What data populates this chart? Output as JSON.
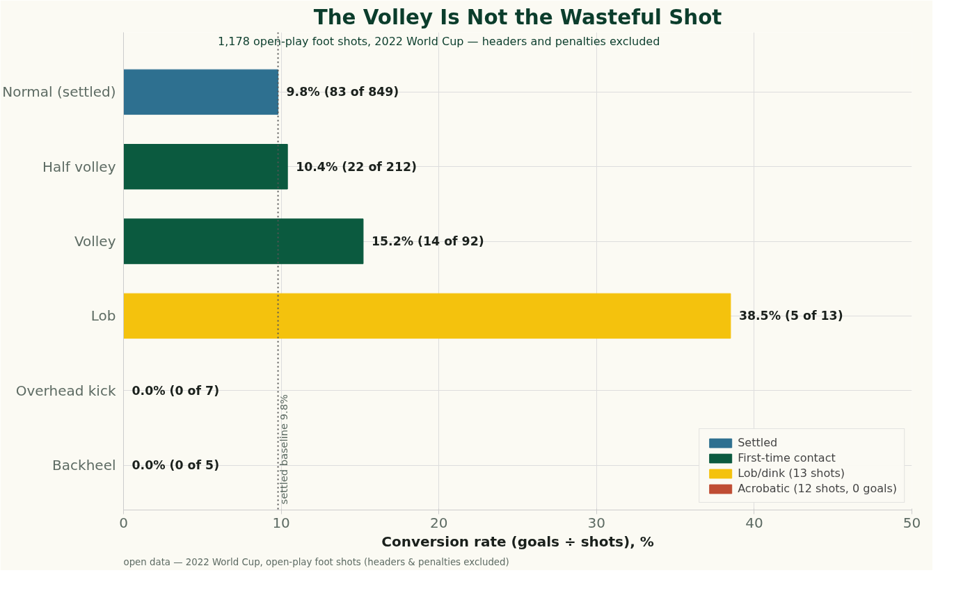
{
  "chart_data": {
    "type": "bar",
    "orientation": "horizontal",
    "title": "The Volley Is Not the Wasteful Shot",
    "subtitle": "1,178 open-play foot shots, 2022 World Cup — headers and penalties excluded",
    "xlabel": "Conversion rate (goals ÷ shots), %",
    "categories": [
      "Normal (settled)",
      "Half volley",
      "Volley",
      "Lob",
      "Overhead kick",
      "Backheel"
    ],
    "series": [
      {
        "name": "Settled",
        "color": "#2e7090",
        "values": [
          9.8,
          null,
          null,
          null,
          null,
          null
        ]
      },
      {
        "name": "First-time contact",
        "color": "#0b5a3f",
        "values": [
          null,
          10.4,
          15.2,
          null,
          null,
          null
        ]
      },
      {
        "name": "Lob/dink (13 shots)",
        "color": "#f4c20d",
        "values": [
          null,
          null,
          null,
          38.5,
          null,
          null
        ]
      },
      {
        "name": "Acrobatic (12 shots, 0 goals)",
        "color": "#bf4d34",
        "values": [
          null,
          null,
          null,
          null,
          0,
          0
        ]
      }
    ],
    "value_labels": [
      "9.8%  (83 of 849)",
      "10.4%  (22 of 212)",
      "15.2%  (14 of 92)",
      "38.5%  (5 of 13)",
      "0.0%  (0 of 7)",
      "0.0%  (0 of 5)"
    ],
    "xlim": [
      0,
      50
    ],
    "xticks": [
      0,
      10,
      20,
      30,
      40,
      50
    ],
    "ref_lines": [
      {
        "axis": "x",
        "value": 9.8,
        "label": "settled baseline 9.8%",
        "color": "#555555",
        "line_style": "dotted"
      }
    ],
    "grid": true,
    "legend": "bottom right",
    "annotations": [
      "open data — 2022 World Cup, open-play foot shots (headers & penalties excluded)"
    ]
  }
}
